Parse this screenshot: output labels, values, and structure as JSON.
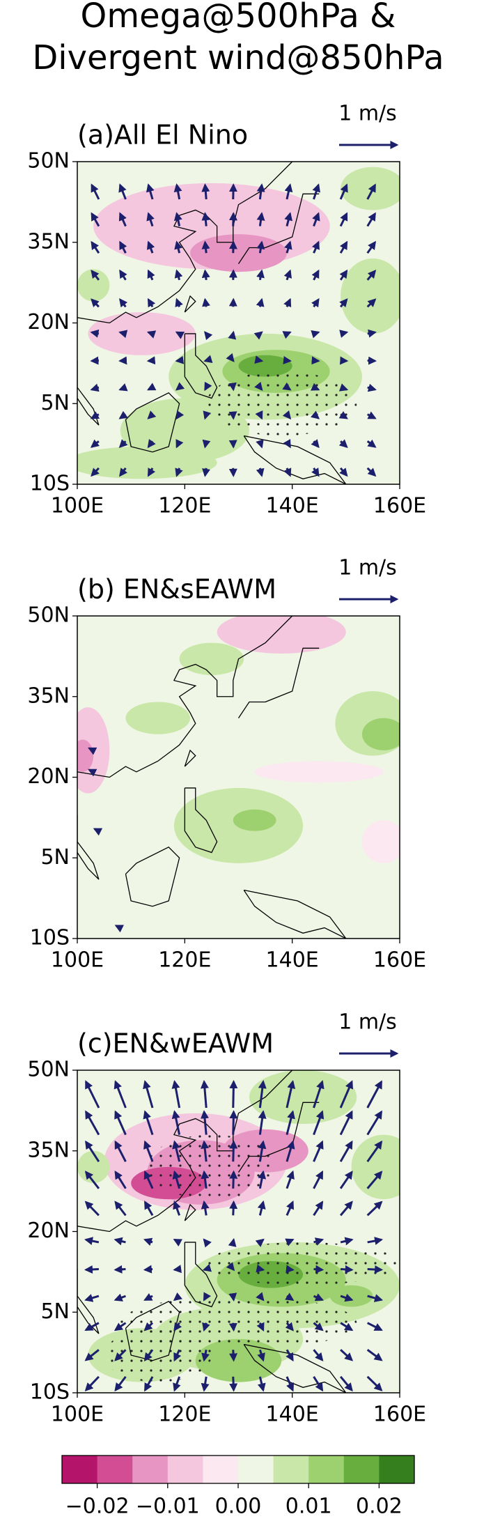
{
  "title": [
    "Omega@500hPa &",
    "Divergent wind@850hPa"
  ],
  "panels": [
    {
      "title": "(a)All El Nino",
      "scale_label": "1 m/s"
    },
    {
      "title": "(b) EN&sEAWM",
      "scale_label": "1 m/s"
    },
    {
      "title": "(c)EN&wEAWM",
      "scale_label": "1 m/s"
    }
  ],
  "map_axes": {
    "xlim": [
      100,
      160
    ],
    "ylim": [
      -10,
      50
    ],
    "xticks": [
      {
        "value": 100,
        "label": "100E"
      },
      {
        "value": 120,
        "label": "120E"
      },
      {
        "value": 140,
        "label": "140E"
      },
      {
        "value": 160,
        "label": "160E"
      }
    ],
    "yticks": [
      {
        "value": 50,
        "label": "50N"
      },
      {
        "value": 35,
        "label": "35N"
      },
      {
        "value": 20,
        "label": "20N"
      },
      {
        "value": 5,
        "label": "5N"
      },
      {
        "value": -10,
        "label": "10S"
      }
    ]
  },
  "colorbar": {
    "lim": [
      -0.025,
      0.025
    ],
    "colors": [
      "#b4146a",
      "#d24d94",
      "#e796c3",
      "#f4c7df",
      "#fbe8f1",
      "#eff6e5",
      "#c9e7a8",
      "#9dd06e",
      "#67ae3f",
      "#367f1f"
    ],
    "ticks": [
      {
        "value": -0.02,
        "label": "−0.02"
      },
      {
        "value": -0.01,
        "label": "−0.01"
      },
      {
        "value": 0,
        "label": "0.00"
      },
      {
        "value": 0.01,
        "label": "0.01"
      },
      {
        "value": 0.02,
        "label": "0.02"
      }
    ]
  }
}
